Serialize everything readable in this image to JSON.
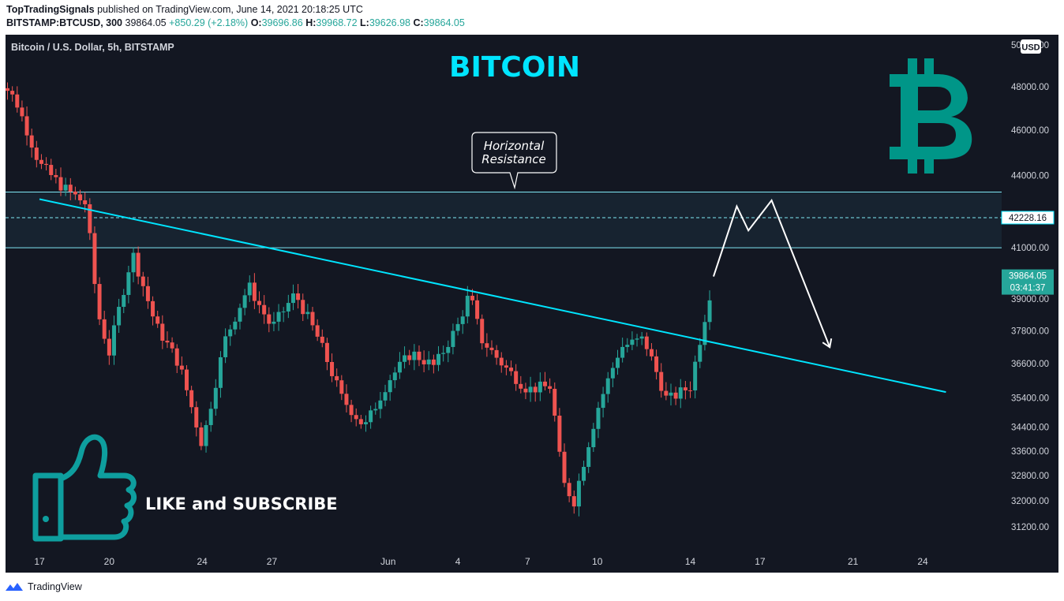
{
  "header": {
    "publisher": "TopTradingSignals",
    "published_text": "published on TradingView.com, June 14, 2021 20:18:25 UTC",
    "symbol_line": "BITSTAMP:BTCUSD, 300",
    "last": "39864.05",
    "change": "+850.29 (+2.18%)",
    "o_label": "O:",
    "o_value": "39696.86",
    "h_label": "H:",
    "h_value": "39968.72",
    "l_label": "L:",
    "l_value": "39626.98",
    "c_label": "C:",
    "c_value": "39864.05"
  },
  "chart": {
    "legend_title": "Bitcoin / U.S. Dollar, 5h, BITSTAMP",
    "overlay_title": "BITCOIN",
    "callout_lines": [
      "Horizontal",
      "Resistance"
    ],
    "cta_text": "LIKE and SUBSCRIBE",
    "currency_badge": "USD",
    "price_tag": "39864.05",
    "countdown_tag": "03:41:37",
    "level_tag": "42228.16",
    "colors": {
      "background": "#131722",
      "up": "#26a69a",
      "down": "#ef5350",
      "trendline": "#00e5ff",
      "title": "#00e5ff",
      "bitcoin_logo": "#009688",
      "thumb": "#0e9e9e",
      "zone_fill": "#172330"
    },
    "icons": [
      "bitcoin-logo-icon",
      "thumbs-up-icon",
      "tradingview-logo-icon"
    ]
  },
  "chart_data": {
    "type": "candlestick",
    "title": "Bitcoin / U.S. Dollar, 5h, BITSTAMP",
    "x_tick_labels": [
      "17",
      "20",
      "24",
      "27",
      "Jun",
      "4",
      "7",
      "10",
      "14",
      "17",
      "21",
      "24"
    ],
    "y_tick_labels": [
      "50000.00",
      "48000.00",
      "46000.00",
      "44000.00",
      "41000.00",
      "39000.00",
      "37800.00",
      "36600.00",
      "35400.00",
      "34400.00",
      "33600.00",
      "32800.00",
      "32000.00",
      "31200.00"
    ],
    "y_axis_scale": "log",
    "ylim": [
      30800,
      50500
    ],
    "horizontal_resistance_zone": [
      41000,
      43300
    ],
    "dashed_level": 42228.16,
    "trendline_from": {
      "date": "May 17",
      "price": 43000
    },
    "trendline_to": {
      "date": "Jun 25",
      "price": 35600
    },
    "projection_path": [
      {
        "date": "Jun 15",
        "price": 39864
      },
      {
        "date": "Jun 16",
        "price": 42700
      },
      {
        "date": "Jun 16.5",
        "price": 41700
      },
      {
        "date": "Jun 17.5",
        "price": 42950
      },
      {
        "date": "Jun 20",
        "price": 37200
      }
    ],
    "close_anchors": [
      {
        "date": "May 15",
        "close": 48800
      },
      {
        "date": "May 16",
        "close": 47300
      },
      {
        "date": "May 17",
        "close": 44500
      },
      {
        "date": "May 18",
        "close": 43500
      },
      {
        "date": "May 19",
        "close": 42800
      },
      {
        "date": "May 19.5",
        "close": 38500
      },
      {
        "date": "May 20",
        "close": 37000
      },
      {
        "date": "May 21",
        "close": 40800
      },
      {
        "date": "May 22",
        "close": 38000
      },
      {
        "date": "May 23",
        "close": 36600
      },
      {
        "date": "May 24",
        "close": 33800
      },
      {
        "date": "May 25",
        "close": 37500
      },
      {
        "date": "May 26",
        "close": 39500
      },
      {
        "date": "May 27",
        "close": 37900
      },
      {
        "date": "May 28",
        "close": 39200
      },
      {
        "date": "May 29",
        "close": 37500
      },
      {
        "date": "May 30",
        "close": 35400
      },
      {
        "date": "May 31",
        "close": 34400
      },
      {
        "date": "Jun 1",
        "close": 36000
      },
      {
        "date": "Jun 2",
        "close": 37000
      },
      {
        "date": "Jun 3",
        "close": 36500
      },
      {
        "date": "Jun 4",
        "close": 38000
      },
      {
        "date": "Jun 4.5",
        "close": 39200
      },
      {
        "date": "Jun 5",
        "close": 37500
      },
      {
        "date": "Jun 6",
        "close": 36500
      },
      {
        "date": "Jun 7",
        "close": 35700
      },
      {
        "date": "Jun 8",
        "close": 35800
      },
      {
        "date": "Jun 8.5",
        "close": 32600
      },
      {
        "date": "Jun 9",
        "close": 32000
      },
      {
        "date": "Jun 10",
        "close": 35000
      },
      {
        "date": "Jun 11",
        "close": 37200
      },
      {
        "date": "Jun 12",
        "close": 37500
      },
      {
        "date": "Jun 13",
        "close": 35300
      },
      {
        "date": "Jun 14",
        "close": 35800
      },
      {
        "date": "Jun 14.5",
        "close": 37800
      },
      {
        "date": "Jun 15",
        "close": 39864
      }
    ]
  }
}
